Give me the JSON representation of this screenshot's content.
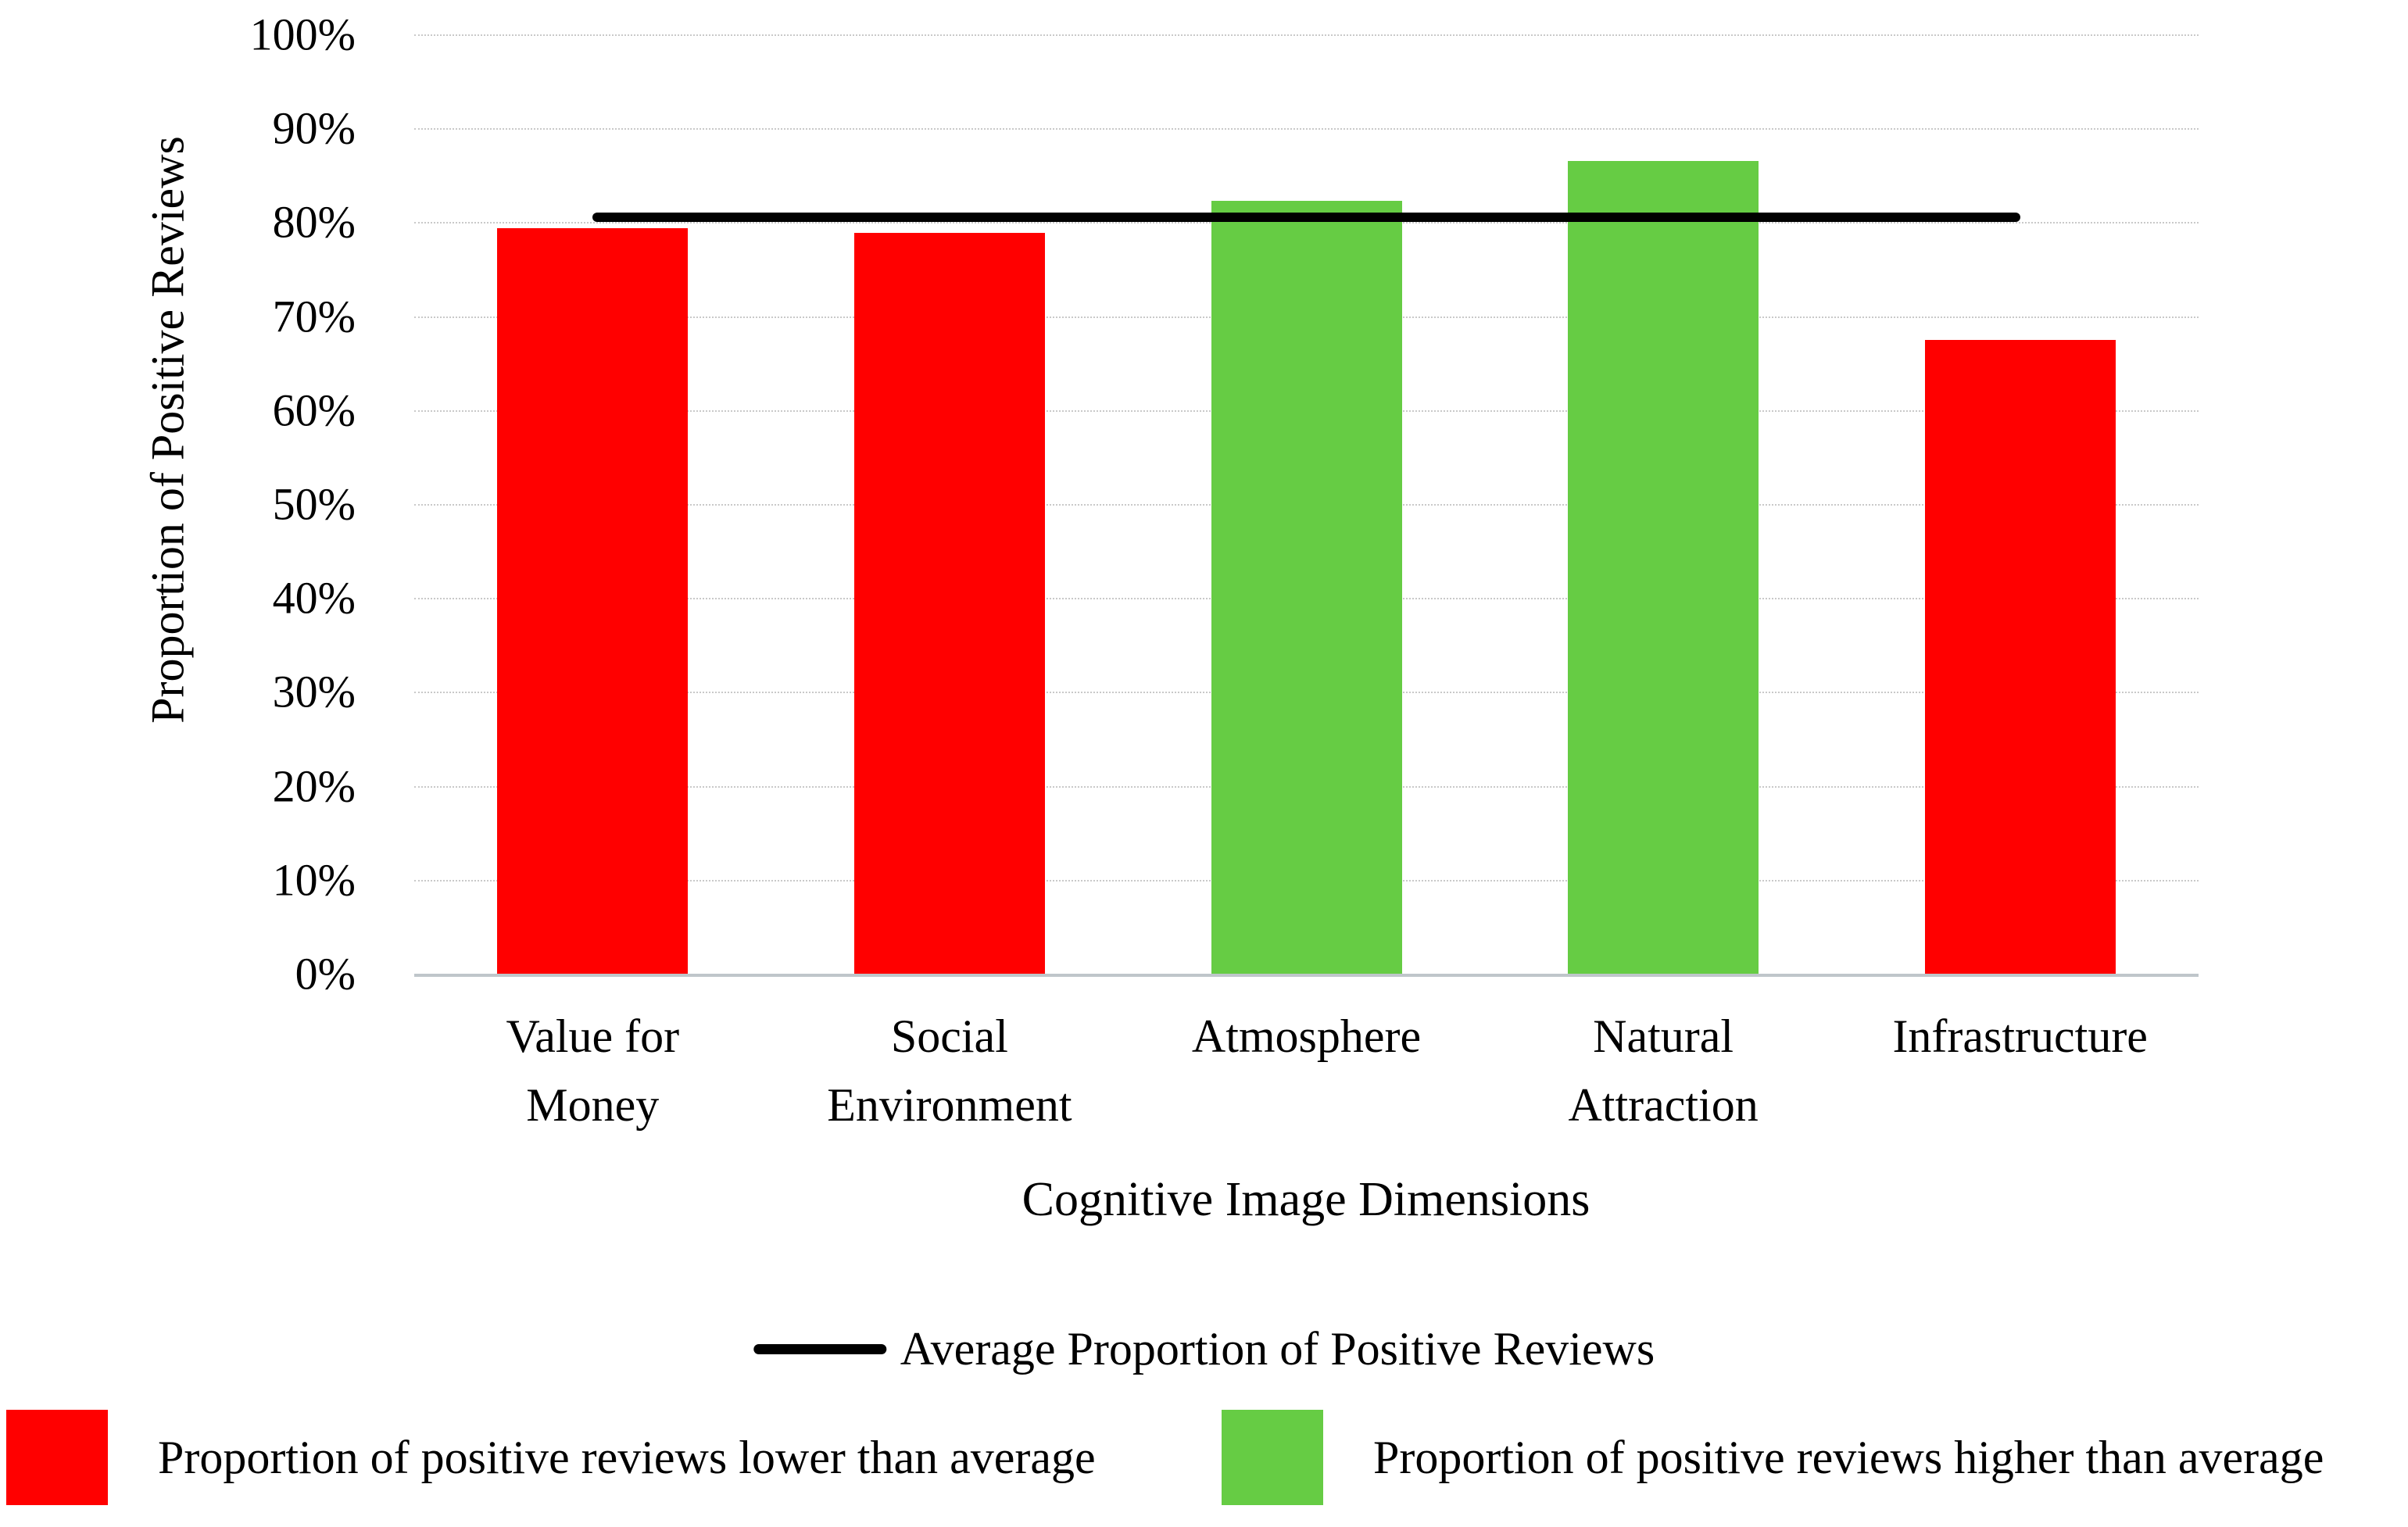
{
  "chart_data": {
    "type": "bar",
    "ylabel": "Proportion of Positive Reviews",
    "xlabel": "Cognitive Image Dimensions",
    "categories": [
      "Value for\nMoney",
      "Social\nEnvironment",
      "Atmosphere",
      "Natural\nAttraction",
      "Infrastructure"
    ],
    "values": [
      79.4,
      78.9,
      82.3,
      86.5,
      67.5
    ],
    "bar_colors": [
      "#FF0000",
      "#FF0000",
      "#66CC44",
      "#66CC44",
      "#FF0000"
    ],
    "ylim": [
      0,
      100
    ],
    "ytick_values": [
      0,
      10,
      20,
      30,
      40,
      50,
      60,
      70,
      80,
      90,
      100
    ],
    "ytick_labels": [
      "0%",
      "10%",
      "20%",
      "30%",
      "40%",
      "50%",
      "60%",
      "70%",
      "80%",
      "90%",
      "100%"
    ],
    "grid": true,
    "legend_position": "bottom",
    "average_line": {
      "value": 80.5,
      "color": "#000000",
      "legend_label": "Average Proportion of Positive Reviews"
    },
    "legend": [
      {
        "swatch_color": "#FF0000",
        "label": "Proportion of positive reviews lower than average"
      },
      {
        "swatch_color": "#66CC44",
        "label": "Proportion of positive reviews higher than average"
      }
    ],
    "colors": {
      "bar_below_average": "#FF0000",
      "bar_above_average": "#66CC44",
      "gridline": "#C9C9C9",
      "axis_line": "#BFC6CA",
      "average_line": "#000000"
    }
  }
}
